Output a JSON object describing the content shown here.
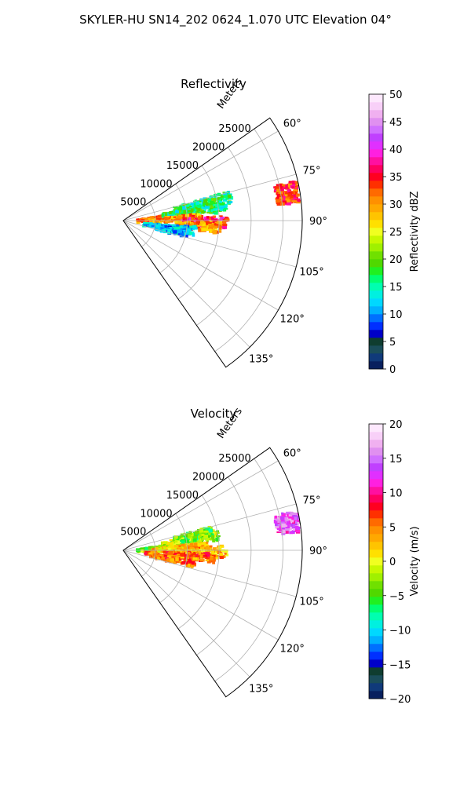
{
  "figure": {
    "title": "SKYLER-HU  SN14_202  0624_1.070 UTC Elevation 04°"
  },
  "chart_data": [
    {
      "type": "heatmap",
      "projection": "polar-sector",
      "title": "Reflectivity",
      "radial_label": "Meters",
      "radial_ticks": [
        5000,
        10000,
        15000,
        20000,
        25000
      ],
      "rlim": [
        0,
        28000
      ],
      "angle_range_deg": [
        55,
        145
      ],
      "angle_ticks": [
        "60°",
        "75°",
        "90°",
        "105°",
        "120°",
        "135°"
      ],
      "angle_tick_values": [
        60,
        75,
        90,
        105,
        120,
        135
      ],
      "grid": true,
      "colorbar": {
        "label": "Reflectivity dBZ",
        "min": 0,
        "max": 50,
        "ticks": [
          "0",
          "5",
          "10",
          "15",
          "20",
          "25",
          "30",
          "35",
          "40",
          "45",
          "50"
        ],
        "colors": [
          "#08205e",
          "#103a7a",
          "#1a4d5a",
          "#0f3d30",
          "#0000c8",
          "#0030ff",
          "#0070ff",
          "#00b0ff",
          "#00d8ff",
          "#00f0e0",
          "#00ffb0",
          "#00ff70",
          "#20f020",
          "#50d800",
          "#70e000",
          "#a0f000",
          "#c8f800",
          "#f0ff20",
          "#ffe000",
          "#ffc400",
          "#ffa800",
          "#ff9000",
          "#ff6a00",
          "#ff3000",
          "#ff0020",
          "#ff0060",
          "#ff10a0",
          "#ff20e0",
          "#e030ff",
          "#c040ff",
          "#d070ff",
          "#e090f0",
          "#f0b0f0",
          "#f8d0f8",
          "#fde8fd"
        ]
      },
      "echo_cells": [
        {
          "az": 84,
          "r": [
            2000,
            9000
          ],
          "dz": 32
        },
        {
          "az": 81,
          "r": [
            6000,
            16000
          ],
          "dz": 17
        },
        {
          "az": 77,
          "r": [
            8000,
            17000
          ],
          "dz": 16
        },
        {
          "az": 87,
          "r": [
            4000,
            12000
          ],
          "dz": 30
        },
        {
          "az": 90,
          "r": [
            9000,
            16000
          ],
          "dz": 36
        },
        {
          "az": 93,
          "r": [
            8000,
            15000
          ],
          "dz": 30
        },
        {
          "az": 97,
          "r": [
            3000,
            11000
          ],
          "dz": 12
        },
        {
          "az": 100,
          "r": [
            5000,
            10000
          ],
          "dz": 11
        },
        {
          "az": 80,
          "r": [
            24000,
            27500
          ],
          "dz": 34
        }
      ]
    },
    {
      "type": "heatmap",
      "projection": "polar-sector",
      "title": "Velocity",
      "radial_label": "Meters",
      "radial_ticks": [
        5000,
        10000,
        15000,
        20000,
        25000
      ],
      "rlim": [
        0,
        28000
      ],
      "angle_range_deg": [
        55,
        145
      ],
      "angle_ticks": [
        "60°",
        "75°",
        "90°",
        "105°",
        "120°",
        "135°"
      ],
      "angle_tick_values": [
        60,
        75,
        90,
        105,
        120,
        135
      ],
      "grid": true,
      "colorbar": {
        "label": "Velocity (m/s)",
        "min": -20,
        "max": 20,
        "ticks": [
          "−20",
          "−15",
          "−10",
          "−5",
          "0",
          "5",
          "10",
          "15",
          "20"
        ],
        "colors": [
          "#08205e",
          "#103a7a",
          "#1a4d5a",
          "#0f3d30",
          "#0000c8",
          "#0030ff",
          "#0070ff",
          "#00b0ff",
          "#00d8ff",
          "#00f0e0",
          "#00ffb0",
          "#00ff70",
          "#20f020",
          "#50d800",
          "#70e000",
          "#a0f000",
          "#c8f800",
          "#f0ff20",
          "#ffe000",
          "#ffc400",
          "#ffa800",
          "#ff9000",
          "#ff6a00",
          "#ff3000",
          "#ff0020",
          "#ff0060",
          "#ff10a0",
          "#ff20e0",
          "#e030ff",
          "#c040ff",
          "#d070ff",
          "#e090f0",
          "#f0b0f0",
          "#f8d0f8",
          "#fde8fd"
        ]
      },
      "echo_cells": [
        {
          "az": 84,
          "r": [
            2000,
            8000
          ],
          "dz": -3
        },
        {
          "az": 80,
          "r": [
            6000,
            15000
          ],
          "dz": -2
        },
        {
          "az": 77,
          "r": [
            8000,
            14000
          ],
          "dz": -4
        },
        {
          "az": 87,
          "r": [
            4000,
            13000
          ],
          "dz": 2
        },
        {
          "az": 90,
          "r": [
            8000,
            16000
          ],
          "dz": 3
        },
        {
          "az": 94,
          "r": [
            3000,
            14000
          ],
          "dz": 6
        },
        {
          "az": 99,
          "r": [
            4000,
            11000
          ],
          "dz": 5
        },
        {
          "az": 80,
          "r": [
            24000,
            27500
          ],
          "dz": 14
        }
      ]
    }
  ]
}
